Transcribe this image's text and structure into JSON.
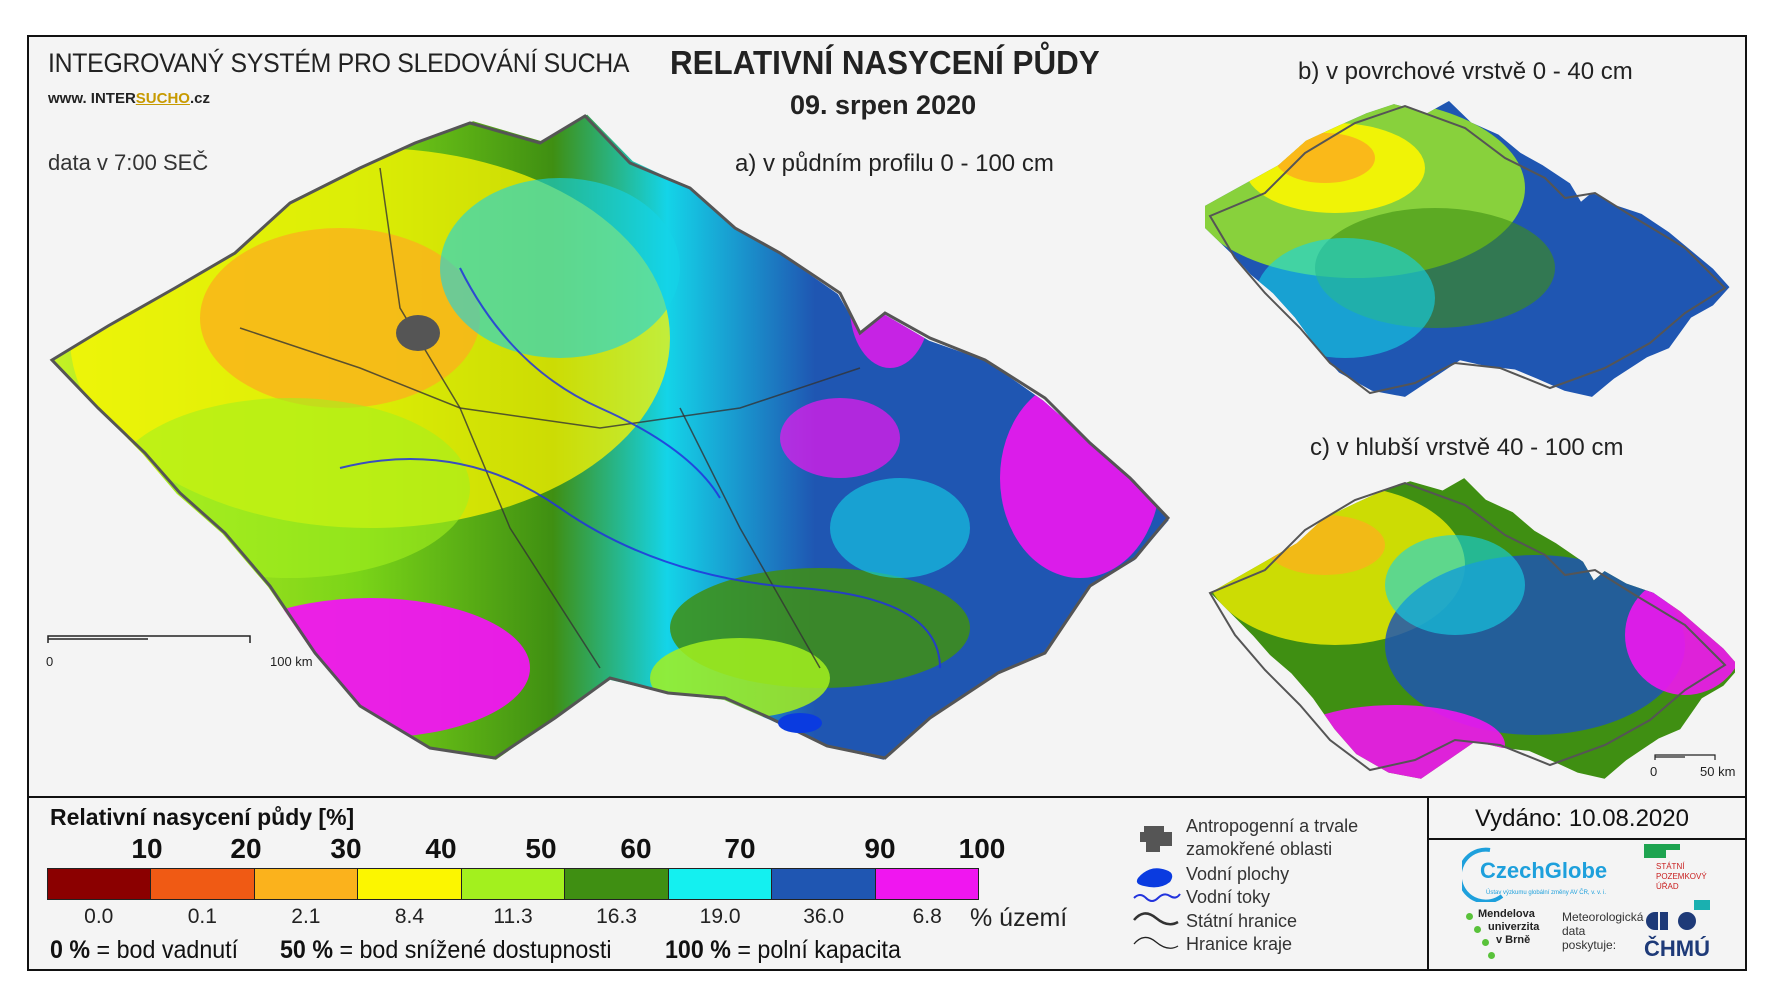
{
  "header": {
    "system_title": "INTEGROVANÝ SYSTÉM PRO SLEDOVÁNÍ SUCHA",
    "website_prefix": "www. INTER",
    "website_highlight": "SUCHO",
    "website_suffix": ".cz",
    "obs_time": "data v 7:00 SEČ",
    "title": "RELATIVNÍ NASYCENÍ PŮDY",
    "date": "09. srpen 2020"
  },
  "maps": {
    "a_label": "a) v půdním profilu 0 - 100 cm",
    "b_label": "b) v povrchové vrstvě 0 - 40 cm",
    "c_label": "c) v hlubší vrstvě 40 - 100 cm",
    "scale_main": {
      "zero": "0",
      "end": "100 km"
    },
    "scale_small": {
      "zero": "0",
      "end": "50 km"
    }
  },
  "legend": {
    "title": "Relativní nasycení půdy [%]",
    "thresholds": [
      "10",
      "20",
      "30",
      "40",
      "50",
      "60",
      "70",
      "90",
      "100"
    ],
    "classes": [
      {
        "color": "#8b0000",
        "share": "0.0"
      },
      {
        "color": "#f05a14",
        "share": "0.1"
      },
      {
        "color": "#fbb21c",
        "share": "2.1"
      },
      {
        "color": "#fcf600",
        "share": "8.4"
      },
      {
        "color": "#a3f01e",
        "share": "11.3"
      },
      {
        "color": "#3f8f12",
        "share": "16.3"
      },
      {
        "color": "#14f0f0",
        "share": "19.0"
      },
      {
        "color": "#1f56b2",
        "share": "36.0"
      },
      {
        "color": "#f016f0",
        "share": "6.8"
      }
    ],
    "share_unit": "% území",
    "wilting_value": "0 %",
    "wilting_label": "= bod vadnutí",
    "reduced_value": "50 %",
    "reduced_label": "= bod snížené dostupnosti",
    "capacity_value": "100 %",
    "capacity_label": "= polní kapacita"
  },
  "map_legend": {
    "anthropogenic_line1": "Antropogenní a trvale",
    "anthropogenic_line2": "zamokřené oblasti",
    "water_bodies": "Vodní plochy",
    "rivers": "Vodní toky",
    "state_border": "Státní hranice",
    "region_border": "Hranice kraje"
  },
  "issued": "Vydáno: 10.08.2020",
  "logos": {
    "czechglobe": "CzechGlobe",
    "czechglobe_sub": "Ústav výzkumu globální změny AV ČR, v. v. i.",
    "spu_line1": "STÁTNÍ",
    "spu_line2": "POZEMKOVÝ",
    "spu_line3": "ÚŘAD",
    "mendel_line1": "Mendelova",
    "mendel_line2": "univerzita",
    "mendel_line3": "v Brně",
    "meteo_line1": "Meteorologická",
    "meteo_line2": "data",
    "meteo_line3": "poskytuje:",
    "chmu": "ČHMÚ"
  }
}
